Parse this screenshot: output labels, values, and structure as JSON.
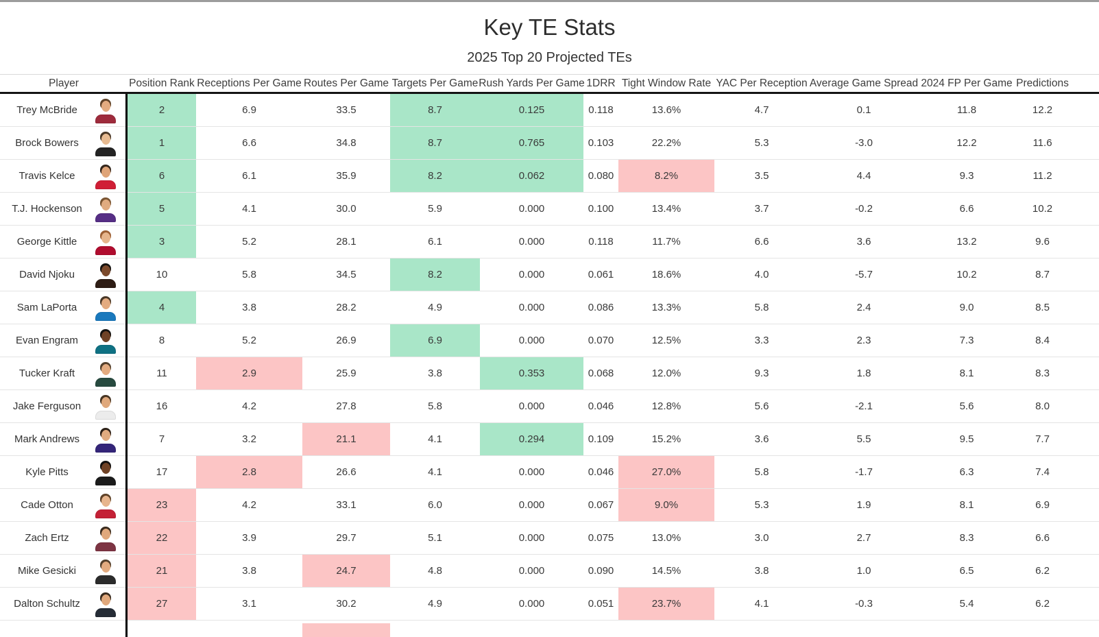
{
  "title": "Key TE Stats",
  "subtitle": "2025 Top 20 Projected TEs",
  "colors": {
    "highlight_good": "#a9e6c8",
    "highlight_bad": "#fcc5c5",
    "header_rule": "#141414",
    "row_divider": "#e4e4e4",
    "top_bar": "#9c9c9c"
  },
  "chart_data": {
    "type": "table",
    "title": "Key TE Stats",
    "subtitle": "2025 Top 20 Projected TEs",
    "columns": [
      "Player",
      "Position Rank",
      "Receptions Per Game",
      "Routes Per Game",
      "Targets Per Game",
      "Rush Yards Per Game",
      "1DRR",
      "Tight Window Rate",
      "YAC Per Reception",
      "Average Game Spread",
      "2024 FP Per Game",
      "Predictions"
    ],
    "highlight_legend": {
      "good": "green highlighted cell",
      "bad": "red highlighted cell"
    },
    "rows": [
      {
        "player": "Trey McBride",
        "avatar": {
          "jersey": "#9e2b3c",
          "skin": "#e3ab80",
          "hair": "#5f4228"
        },
        "cells": [
          {
            "v": "2",
            "bg": "good"
          },
          {
            "v": "6.9"
          },
          {
            "v": "33.5"
          },
          {
            "v": "8.7",
            "bg": "good"
          },
          {
            "v": "0.125",
            "bg": "good"
          },
          {
            "v": "0.118"
          },
          {
            "v": "13.6%"
          },
          {
            "v": "4.7"
          },
          {
            "v": "0.1"
          },
          {
            "v": "11.8"
          },
          {
            "v": "12.2"
          }
        ]
      },
      {
        "player": "Brock Bowers",
        "avatar": {
          "jersey": "#232323",
          "skin": "#e7bb92",
          "hair": "#4a3827"
        },
        "cells": [
          {
            "v": "1",
            "bg": "good"
          },
          {
            "v": "6.6"
          },
          {
            "v": "34.8"
          },
          {
            "v": "8.7",
            "bg": "good"
          },
          {
            "v": "0.765",
            "bg": "good"
          },
          {
            "v": "0.103"
          },
          {
            "v": "22.2%"
          },
          {
            "v": "5.3"
          },
          {
            "v": "-3.0"
          },
          {
            "v": "12.2"
          },
          {
            "v": "11.6"
          }
        ]
      },
      {
        "player": "Travis Kelce",
        "avatar": {
          "jersey": "#d01f36",
          "skin": "#dfa478",
          "hair": "#33261c"
        },
        "cells": [
          {
            "v": "6",
            "bg": "good"
          },
          {
            "v": "6.1"
          },
          {
            "v": "35.9"
          },
          {
            "v": "8.2",
            "bg": "good"
          },
          {
            "v": "0.062",
            "bg": "good"
          },
          {
            "v": "0.080"
          },
          {
            "v": "8.2%",
            "bg": "bad"
          },
          {
            "v": "3.5"
          },
          {
            "v": "4.4"
          },
          {
            "v": "9.3"
          },
          {
            "v": "11.2"
          }
        ]
      },
      {
        "player": "T.J. Hockenson",
        "avatar": {
          "jersey": "#562e85",
          "skin": "#e0ab80",
          "hair": "#7a5532"
        },
        "cells": [
          {
            "v": "5",
            "bg": "good"
          },
          {
            "v": "4.1"
          },
          {
            "v": "30.0"
          },
          {
            "v": "5.9"
          },
          {
            "v": "0.000"
          },
          {
            "v": "0.100"
          },
          {
            "v": "13.4%"
          },
          {
            "v": "3.7"
          },
          {
            "v": "-0.2"
          },
          {
            "v": "6.6"
          },
          {
            "v": "10.2"
          }
        ]
      },
      {
        "player": "George Kittle",
        "avatar": {
          "jersey": "#b00c2e",
          "skin": "#e6b58c",
          "hair": "#9c5f33"
        },
        "cells": [
          {
            "v": "3",
            "bg": "good"
          },
          {
            "v": "5.2"
          },
          {
            "v": "28.1"
          },
          {
            "v": "6.1"
          },
          {
            "v": "0.000"
          },
          {
            "v": "0.118"
          },
          {
            "v": "11.7%"
          },
          {
            "v": "6.6"
          },
          {
            "v": "3.6"
          },
          {
            "v": "13.2"
          },
          {
            "v": "9.6"
          }
        ]
      },
      {
        "player": "David Njoku",
        "avatar": {
          "jersey": "#2e1d15",
          "skin": "#7c4a2c",
          "hair": "#161310"
        },
        "cells": [
          {
            "v": "10"
          },
          {
            "v": "5.8"
          },
          {
            "v": "34.5"
          },
          {
            "v": "8.2",
            "bg": "good"
          },
          {
            "v": "0.000"
          },
          {
            "v": "0.061"
          },
          {
            "v": "18.6%"
          },
          {
            "v": "4.0"
          },
          {
            "v": "-5.7"
          },
          {
            "v": "10.2"
          },
          {
            "v": "8.7"
          }
        ]
      },
      {
        "player": "Sam LaPorta",
        "avatar": {
          "jersey": "#1a79bd",
          "skin": "#e3ab80",
          "hair": "#4a3827"
        },
        "cells": [
          {
            "v": "4",
            "bg": "good"
          },
          {
            "v": "3.8"
          },
          {
            "v": "28.2"
          },
          {
            "v": "4.9"
          },
          {
            "v": "0.000"
          },
          {
            "v": "0.086"
          },
          {
            "v": "13.3%"
          },
          {
            "v": "5.8"
          },
          {
            "v": "2.4"
          },
          {
            "v": "9.0"
          },
          {
            "v": "8.5"
          }
        ]
      },
      {
        "player": "Evan Engram",
        "avatar": {
          "jersey": "#0f7183",
          "skin": "#6f4226",
          "hair": "#141210"
        },
        "cells": [
          {
            "v": "8"
          },
          {
            "v": "5.2"
          },
          {
            "v": "26.9"
          },
          {
            "v": "6.9",
            "bg": "good"
          },
          {
            "v": "0.000"
          },
          {
            "v": "0.070"
          },
          {
            "v": "12.5%"
          },
          {
            "v": "3.3"
          },
          {
            "v": "2.3"
          },
          {
            "v": "7.3"
          },
          {
            "v": "8.4"
          }
        ]
      },
      {
        "player": "Tucker Kraft",
        "avatar": {
          "jersey": "#274a3f",
          "skin": "#e3ab80",
          "hair": "#54402c"
        },
        "cells": [
          {
            "v": "11"
          },
          {
            "v": "2.9",
            "bg": "bad"
          },
          {
            "v": "25.9"
          },
          {
            "v": "3.8"
          },
          {
            "v": "0.353",
            "bg": "good"
          },
          {
            "v": "0.068"
          },
          {
            "v": "12.0%"
          },
          {
            "v": "9.3"
          },
          {
            "v": "1.8"
          },
          {
            "v": "8.1"
          },
          {
            "v": "8.3"
          }
        ]
      },
      {
        "player": "Jake Ferguson",
        "avatar": {
          "jersey": "#ececec",
          "skin": "#dfa87c",
          "hair": "#473524"
        },
        "cells": [
          {
            "v": "16"
          },
          {
            "v": "4.2"
          },
          {
            "v": "27.8"
          },
          {
            "v": "5.8"
          },
          {
            "v": "0.000"
          },
          {
            "v": "0.046"
          },
          {
            "v": "12.8%"
          },
          {
            "v": "5.6"
          },
          {
            "v": "-2.1"
          },
          {
            "v": "5.6"
          },
          {
            "v": "8.0"
          }
        ]
      },
      {
        "player": "Mark Andrews",
        "avatar": {
          "jersey": "#342579",
          "skin": "#e0ab80",
          "hair": "#2c2017"
        },
        "cells": [
          {
            "v": "7"
          },
          {
            "v": "3.2"
          },
          {
            "v": "21.1",
            "bg": "bad"
          },
          {
            "v": "4.1"
          },
          {
            "v": "0.294",
            "bg": "good"
          },
          {
            "v": "0.109"
          },
          {
            "v": "15.2%"
          },
          {
            "v": "3.6"
          },
          {
            "v": "5.5"
          },
          {
            "v": "9.5"
          },
          {
            "v": "7.7"
          }
        ]
      },
      {
        "player": "Kyle Pitts",
        "avatar": {
          "jersey": "#1b1b1b",
          "skin": "#6f4226",
          "hair": "#121110"
        },
        "cells": [
          {
            "v": "17"
          },
          {
            "v": "2.8",
            "bg": "bad"
          },
          {
            "v": "26.6"
          },
          {
            "v": "4.1"
          },
          {
            "v": "0.000"
          },
          {
            "v": "0.046"
          },
          {
            "v": "27.0%",
            "bg": "bad"
          },
          {
            "v": "5.8"
          },
          {
            "v": "-1.7"
          },
          {
            "v": "6.3"
          },
          {
            "v": "7.4"
          }
        ]
      },
      {
        "player": "Cade Otton",
        "avatar": {
          "jersey": "#c42136",
          "skin": "#e7b58d",
          "hair": "#5f4228"
        },
        "cells": [
          {
            "v": "23",
            "bg": "bad"
          },
          {
            "v": "4.2"
          },
          {
            "v": "33.1"
          },
          {
            "v": "6.0"
          },
          {
            "v": "0.000"
          },
          {
            "v": "0.067"
          },
          {
            "v": "9.0%",
            "bg": "bad"
          },
          {
            "v": "5.3"
          },
          {
            "v": "1.9"
          },
          {
            "v": "8.1"
          },
          {
            "v": "6.9"
          }
        ]
      },
      {
        "player": "Zach Ertz",
        "avatar": {
          "jersey": "#7d3443",
          "skin": "#e0a87c",
          "hair": "#3a2b1e"
        },
        "cells": [
          {
            "v": "22",
            "bg": "bad"
          },
          {
            "v": "3.9"
          },
          {
            "v": "29.7"
          },
          {
            "v": "5.1"
          },
          {
            "v": "0.000"
          },
          {
            "v": "0.075"
          },
          {
            "v": "13.0%"
          },
          {
            "v": "3.0"
          },
          {
            "v": "2.7"
          },
          {
            "v": "8.3"
          },
          {
            "v": "6.6"
          }
        ]
      },
      {
        "player": "Mike Gesicki",
        "avatar": {
          "jersey": "#2b2b2b",
          "skin": "#e3ab80",
          "hair": "#54402c"
        },
        "cells": [
          {
            "v": "21",
            "bg": "bad"
          },
          {
            "v": "3.8"
          },
          {
            "v": "24.7",
            "bg": "bad"
          },
          {
            "v": "4.8"
          },
          {
            "v": "0.000"
          },
          {
            "v": "0.090"
          },
          {
            "v": "14.5%"
          },
          {
            "v": "3.8"
          },
          {
            "v": "1.0"
          },
          {
            "v": "6.5"
          },
          {
            "v": "6.2"
          }
        ]
      },
      {
        "player": "Dalton Schultz",
        "avatar": {
          "jersey": "#252c36",
          "skin": "#e0a87c",
          "hair": "#382a1d"
        },
        "cells": [
          {
            "v": "27",
            "bg": "bad"
          },
          {
            "v": "3.1"
          },
          {
            "v": "30.2"
          },
          {
            "v": "4.9"
          },
          {
            "v": "0.000"
          },
          {
            "v": "0.051"
          },
          {
            "v": "23.7%",
            "bg": "bad"
          },
          {
            "v": "4.1"
          },
          {
            "v": "-0.3"
          },
          {
            "v": "5.4"
          },
          {
            "v": "6.2"
          }
        ]
      }
    ],
    "partial_next_row": {
      "column_index": 3,
      "bg": "bad"
    }
  }
}
